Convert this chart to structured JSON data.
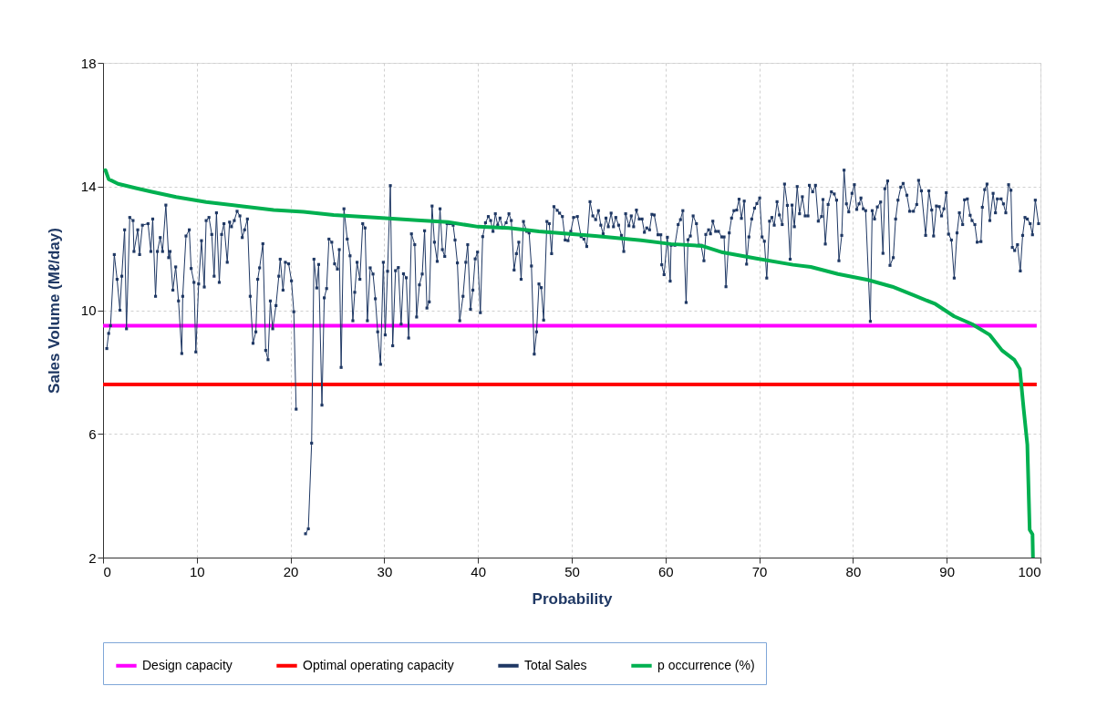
{
  "chart_data": {
    "type": "line",
    "xlabel": "Probability",
    "ylabel": "Sales Volume (Mℓ/day)",
    "xlim": [
      0,
      100
    ],
    "ylim": [
      2,
      18
    ],
    "xticks": [
      0,
      10,
      20,
      30,
      40,
      50,
      60,
      70,
      80,
      90,
      100
    ],
    "yticks": [
      2,
      6,
      10,
      14,
      18
    ],
    "grid": true,
    "legend": "bottom",
    "series": [
      {
        "name": "Design capacity",
        "color": "#ff00ff",
        "x": [
          0,
          99.6
        ],
        "values": [
          9.5,
          9.5
        ]
      },
      {
        "name": "Optimal operating capacity",
        "color": "#ff0000",
        "x": [
          0,
          99.6
        ],
        "values": [
          7.6,
          7.6
        ]
      },
      {
        "name": "Total Sales",
        "color": "#1f3864",
        "marker": "square",
        "x": [
          0.4,
          0.6,
          0.8,
          1.2,
          1.5,
          1.8,
          2.0,
          2.3,
          2.5,
          2.85,
          3.2,
          3.3,
          3.7,
          3.9,
          4.2,
          4.8,
          5.1,
          5.3,
          5.6,
          5.8,
          6.1,
          6.35,
          6.7,
          7.0,
          7.15,
          7.45,
          7.75,
          8.05,
          8.4,
          8.5,
          8.85,
          9.2,
          9.4,
          9.7,
          9.9,
          10.2,
          10.5,
          10.8,
          11.0,
          11.3,
          11.6,
          11.85,
          12.1,
          12.4,
          12.65,
          12.9,
          13.25,
          13.5,
          13.7,
          14.0,
          14.3,
          14.6,
          14.85,
          15.1,
          15.4,
          15.7,
          16.0,
          16.3,
          16.5,
          16.7,
          17.05,
          17.35,
          17.6,
          17.85,
          18.1,
          18.45,
          18.75,
          18.9,
          19.2,
          19.45,
          19.8,
          20.1,
          20.35,
          20.6,
          20.9,
          21.2,
          21.6,
          21.9,
          22.25,
          22.5,
          22.8,
          23.0,
          23.35,
          23.6,
          23.85,
          24.1,
          24.4,
          24.7,
          25.0,
          25.2,
          25.4,
          25.7,
          26.05,
          26.35,
          26.65,
          26.85,
          27.1,
          27.4,
          27.7,
          27.95,
          28.2,
          28.5,
          28.8,
          29.05,
          29.3,
          29.6,
          29.9,
          30.1,
          30.35,
          30.65,
          30.9,
          31.2,
          31.5,
          31.8,
          32.05,
          32.35,
          32.6,
          32.9,
          33.25,
          33.45,
          33.75,
          34.05,
          34.3,
          34.55,
          34.8,
          35.1,
          35.35,
          35.65,
          35.95,
          36.2,
          36.45,
          36.7,
          37.0,
          37.35,
          37.55,
          37.8,
          38.05,
          38.4,
          38.7,
          38.9,
          39.2,
          39.45,
          39.7,
          39.95,
          40.25,
          40.5,
          40.8,
          41.1,
          41.35,
          41.6,
          41.85,
          42.1,
          42.35,
          42.65,
          43.0,
          43.3,
          43.55,
          43.85,
          44.1,
          44.35,
          44.6,
          44.85,
          45.2,
          45.45,
          45.7,
          46.0,
          46.25,
          46.5,
          46.75,
          47.0,
          47.35,
          47.6,
          47.85,
          48.1,
          48.45,
          48.7,
          49.0,
          49.3,
          49.6,
          49.9,
          50.2,
          50.6,
          51.0,
          51.3,
          51.6,
          51.95,
          52.25,
          52.55,
          52.85,
          53.1,
          53.35,
          53.65,
          53.9,
          54.2,
          54.45,
          54.7,
          55.0,
          55.3,
          55.55,
          55.75,
          56.1,
          56.35,
          56.6,
          56.9,
          57.2,
          57.5,
          57.75,
          58.0,
          58.3,
          58.55,
          58.8,
          59.2,
          59.5,
          59.6,
          59.85,
          60.2,
          60.5,
          60.6,
          61.0,
          61.35,
          61.6,
          61.85,
          62.2,
          62.4,
          62.65,
          62.95,
          63.3,
          63.55,
          63.8,
          64.1,
          64.3,
          64.6,
          64.8,
          65.05,
          65.35,
          65.65,
          66.0,
          66.25,
          66.45,
          66.8,
          67.05,
          67.3,
          67.6,
          67.85,
          68.1,
          68.4,
          68.65,
          68.9,
          69.2,
          69.5,
          69.75,
          70.05,
          70.3,
          70.55,
          70.8,
          71.1,
          71.35,
          71.6,
          71.9,
          72.15,
          72.45,
          72.7,
          73.0,
          73.3,
          73.5,
          73.75,
          74.05,
          74.3,
          74.6,
          74.9,
          75.2,
          75.35,
          75.7,
          76.0,
          76.3,
          76.65,
          76.8,
          77.05,
          77.35,
          77.7,
          78.0,
          78.25,
          78.5,
          78.8,
          79.05,
          79.3,
          79.55,
          79.9,
          80.15,
          80.4,
          80.65,
          80.85,
          81.1,
          81.35,
          81.85,
          82.05,
          82.3,
          82.6,
          82.95,
          83.2,
          83.4,
          83.7,
          83.95,
          84.3,
          84.55,
          84.8,
          85.1,
          85.35,
          85.75,
          86.05,
          86.45,
          86.8,
          87.0,
          87.3,
          87.75,
          88.1,
          88.4,
          88.6,
          88.9,
          89.2,
          89.45,
          89.7,
          89.95,
          90.2,
          90.5,
          90.8,
          91.1,
          91.35,
          91.7,
          91.9,
          92.2,
          92.5,
          92.7,
          93.0,
          93.25,
          93.65,
          93.8,
          94.05,
          94.3,
          94.6,
          94.95,
          95.2,
          95.4,
          95.8,
          96.05,
          96.3,
          96.6,
          96.85,
          97.0,
          97.25,
          97.55,
          97.85,
          98.1,
          98.35,
          98.6,
          98.9,
          99.15,
          99.45,
          99.8
        ],
        "values": [
          8.76,
          9.25,
          9.5,
          11.8,
          11.0,
          10.0,
          11.1,
          12.6,
          9.4,
          13.0,
          12.9,
          11.9,
          12.6,
          11.8,
          12.75,
          12.8,
          11.9,
          12.95,
          10.45,
          11.9,
          12.35,
          11.9,
          13.4,
          11.7,
          11.9,
          10.65,
          11.4,
          10.3,
          8.6,
          10.45,
          12.4,
          12.6,
          11.35,
          10.9,
          8.65,
          10.85,
          12.25,
          10.75,
          12.9,
          13.0,
          12.45,
          11.1,
          13.15,
          10.9,
          12.45,
          12.8,
          11.55,
          12.85,
          12.7,
          12.9,
          13.2,
          13.05,
          12.35,
          12.6,
          12.95,
          10.45,
          8.93,
          9.3,
          11.0,
          11.37,
          12.15,
          8.7,
          8.4,
          10.3,
          9.4,
          10.15,
          11.1,
          11.65,
          10.65,
          11.55,
          11.5,
          10.95,
          9.95,
          6.8,
          null,
          null,
          2.77,
          2.93,
          5.7,
          11.65,
          10.72,
          11.48,
          6.93,
          10.4,
          10.7,
          12.3,
          12.2,
          11.5,
          11.33,
          11.96,
          8.15,
          13.28,
          12.3,
          11.76,
          9.66,
          10.58,
          11.55,
          11.0,
          12.8,
          12.66,
          9.66,
          11.37,
          11.17,
          10.37,
          9.3,
          8.25,
          11.55,
          9.2,
          11.26,
          14.03,
          8.85,
          11.28,
          11.38,
          9.55,
          11.18,
          11.05,
          9.1,
          12.47,
          12.12,
          9.78,
          10.82,
          11.17,
          12.57,
          10.07,
          10.27,
          13.37,
          12.2,
          11.58,
          13.28,
          11.96,
          11.74,
          12.8,
          12.8,
          12.75,
          12.27,
          11.53,
          9.66,
          10.45,
          11.55,
          12.12,
          10.03,
          10.65,
          11.66,
          11.88,
          9.92,
          12.38,
          12.83,
          13.03,
          12.9,
          12.55,
          13.12,
          12.75,
          12.98,
          12.66,
          12.83,
          13.12,
          12.9,
          11.3,
          11.83,
          12.2,
          11.0,
          12.87,
          12.55,
          12.5,
          11.43,
          8.58,
          9.3,
          10.85,
          10.73,
          9.68,
          12.87,
          12.8,
          11.83,
          13.35,
          13.23,
          13.14,
          13.03,
          12.27,
          12.25,
          12.55,
          13.0,
          13.03,
          12.38,
          12.3,
          12.06,
          13.51,
          13.05,
          12.93,
          13.22,
          12.75,
          12.47,
          12.98,
          12.7,
          13.14,
          12.7,
          13.0,
          12.75,
          12.42,
          11.9,
          13.12,
          12.73,
          13.05,
          12.7,
          13.24,
          12.95,
          12.95,
          12.52,
          12.66,
          12.6,
          13.1,
          13.08,
          12.44,
          12.44,
          11.47,
          11.15,
          12.36,
          10.94,
          12.1,
          12.1,
          12.77,
          12.93,
          13.22,
          10.25,
          12.28,
          12.4,
          13.05,
          12.8,
          12.1,
          12.1,
          11.6,
          12.45,
          12.6,
          12.47,
          12.88,
          12.55,
          12.55,
          12.37,
          12.37,
          10.76,
          12.5,
          12.98,
          13.22,
          13.24,
          13.59,
          12.97,
          13.53,
          11.49,
          12.37,
          12.95,
          13.3,
          13.45,
          13.63,
          12.37,
          12.23,
          11.04,
          12.88,
          13.0,
          12.75,
          13.51,
          13.08,
          12.77,
          14.08,
          13.39,
          11.65,
          13.4,
          12.7,
          14.0,
          13.12,
          13.67,
          13.05,
          13.05,
          14.04,
          13.83,
          14.04,
          12.88,
          13.03,
          13.58,
          12.14,
          13.42,
          13.83,
          13.76,
          13.56,
          11.6,
          12.42,
          14.53,
          13.44,
          13.18,
          13.78,
          14.06,
          13.26,
          13.44,
          13.63,
          13.28,
          13.22,
          9.64,
          13.22,
          12.95,
          13.34,
          13.5,
          11.84,
          13.93,
          14.18,
          11.45,
          11.7,
          12.95,
          13.56,
          13.98,
          14.1,
          13.72,
          13.2,
          13.2,
          13.42,
          14.2,
          13.86,
          12.42,
          13.86,
          13.24,
          12.4,
          13.37,
          13.35,
          13.05,
          13.28,
          13.8,
          12.46,
          12.27,
          11.04,
          12.5,
          13.15,
          12.77,
          13.57,
          13.6,
          13.07,
          12.9,
          12.77,
          12.2,
          12.22,
          13.33,
          13.9,
          14.08,
          12.9,
          13.78,
          13.15,
          13.6,
          13.6,
          13.44,
          13.15,
          14.06,
          13.88,
          12.03,
          11.93,
          12.12,
          11.27,
          12.42,
          13.0,
          12.95,
          12.8,
          12.44,
          13.56,
          12.8
        ]
      },
      {
        "name": "p occurrence (%)",
        "color": "#00b050",
        "x": [
          0.1,
          0.26,
          0.6,
          1.6,
          3.5,
          5.2,
          7.8,
          11.0,
          14.9,
          18.2,
          21.4,
          24.6,
          29.0,
          33.5,
          36.8,
          40.0,
          43.3,
          46.5,
          49.8,
          52.5,
          57.4,
          60.6,
          63.9,
          66.1,
          69.7,
          73.6,
          75.5,
          78.4,
          81.6,
          84.2,
          86.5,
          88.8,
          90.8,
          92.7,
          94.6,
          95.9,
          97.2,
          97.8,
          98.2,
          98.6,
          98.85,
          99.15,
          99.2
        ],
        "values": [
          14.5,
          14.53,
          14.24,
          14.09,
          13.95,
          13.83,
          13.66,
          13.5,
          13.36,
          13.24,
          13.18,
          13.08,
          13.0,
          12.91,
          12.85,
          12.7,
          12.66,
          12.55,
          12.47,
          12.4,
          12.26,
          12.14,
          12.08,
          11.87,
          11.67,
          11.47,
          11.4,
          11.17,
          10.98,
          10.76,
          10.48,
          10.2,
          9.8,
          9.55,
          9.2,
          8.7,
          8.4,
          8.1,
          6.83,
          5.65,
          2.9,
          2.75,
          2.0
        ]
      }
    ]
  }
}
